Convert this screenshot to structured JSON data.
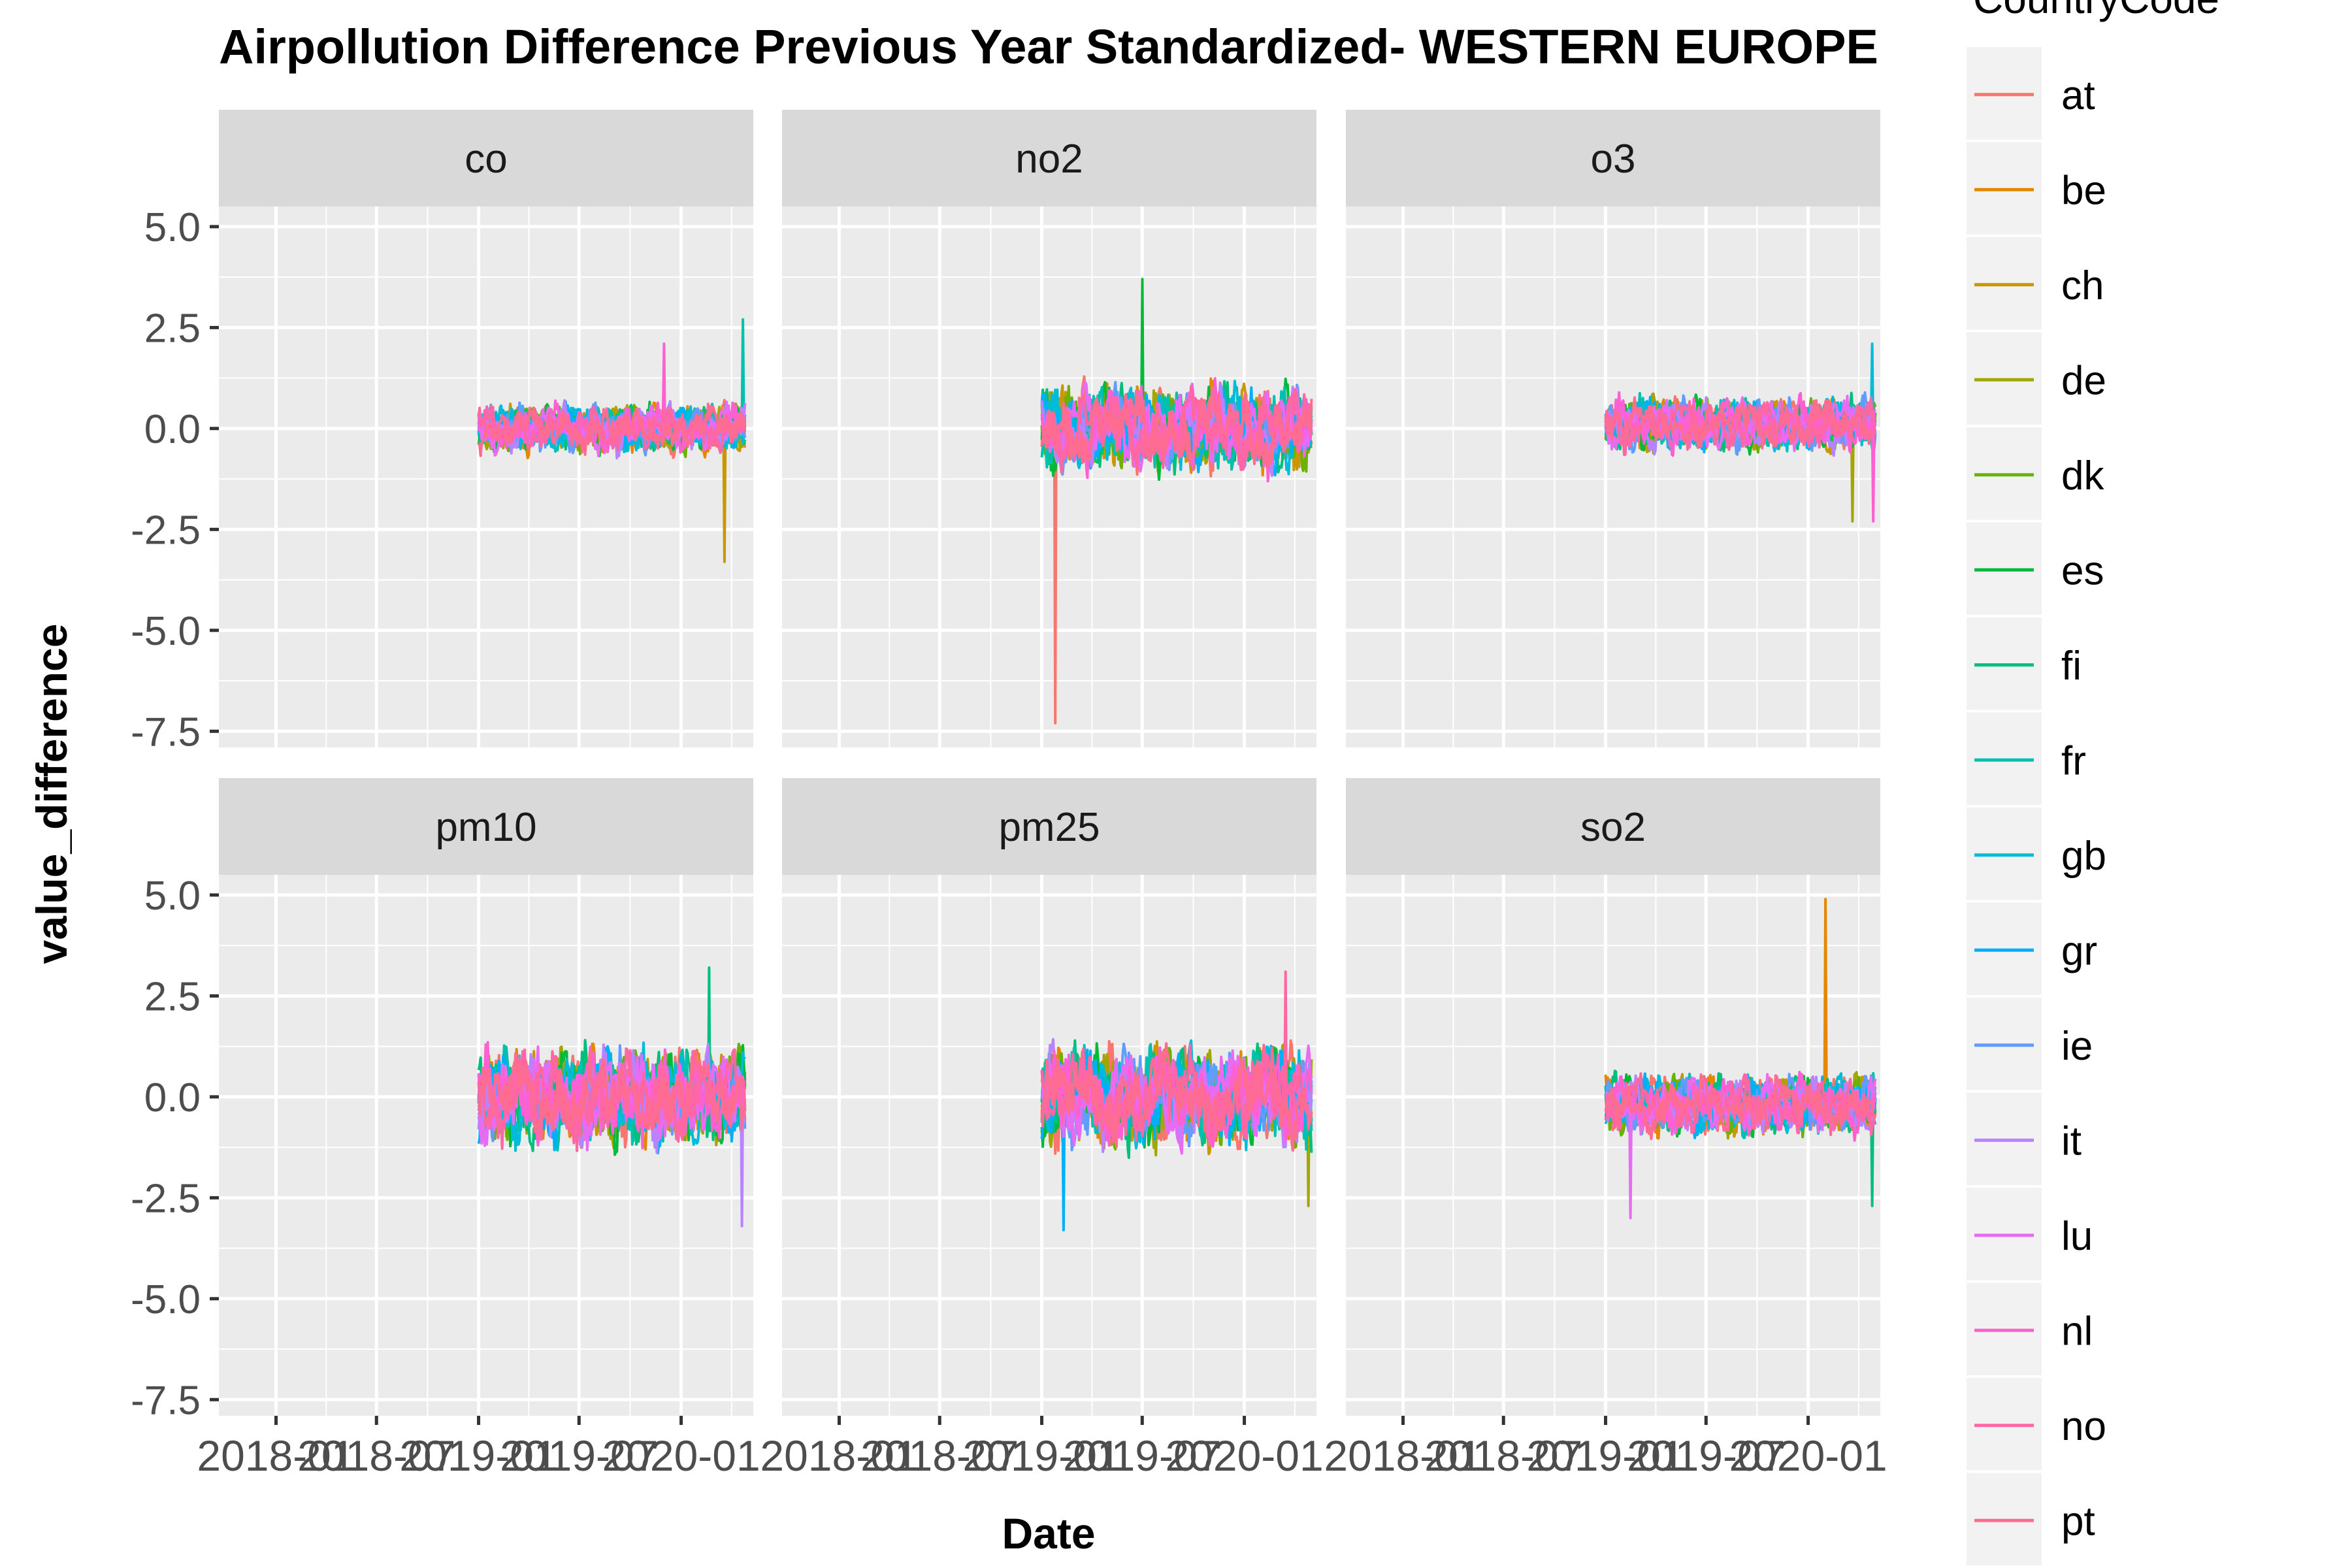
{
  "chart_data": {
    "type": "line",
    "title": "Airpollution Difference Previous Year Standardized- WESTERN EUROPE",
    "xlabel": "Date",
    "ylabel": "value_difference",
    "legend_title": "CountryCode",
    "legend_position": "right",
    "grid": true,
    "ylim": [
      -7.9,
      5.5
    ],
    "yticks": [
      -7.5,
      -5.0,
      -2.5,
      0.0,
      2.5,
      5.0
    ],
    "ytick_labels": [
      "-7.5",
      "-5.0",
      "-2.5",
      "0.0",
      "2.5",
      "5.0"
    ],
    "xlim": [
      "2017-09-20",
      "2020-05-10"
    ],
    "xticks": [
      "2018-01-01",
      "2018-07-01",
      "2019-01-01",
      "2019-07-01",
      "2020-01-01"
    ],
    "xtick_labels": [
      "2018-01",
      "2018-07",
      "2019-01",
      "2019-07",
      "2020-01"
    ],
    "series": [
      {
        "name": "at",
        "color": "#F8766D"
      },
      {
        "name": "be",
        "color": "#E58700"
      },
      {
        "name": "ch",
        "color": "#C99800"
      },
      {
        "name": "de",
        "color": "#A3A500"
      },
      {
        "name": "dk",
        "color": "#6BB100"
      },
      {
        "name": "es",
        "color": "#00BA38"
      },
      {
        "name": "fi",
        "color": "#00BF7D"
      },
      {
        "name": "fr",
        "color": "#00C0AF"
      },
      {
        "name": "gb",
        "color": "#00BCD8"
      },
      {
        "name": "gr",
        "color": "#00B0F6"
      },
      {
        "name": "ie",
        "color": "#619CFF"
      },
      {
        "name": "it",
        "color": "#B983FF"
      },
      {
        "name": "lu",
        "color": "#E76BF3"
      },
      {
        "name": "nl",
        "color": "#FD61D1"
      },
      {
        "name": "no",
        "color": "#FF67A4"
      },
      {
        "name": "pt",
        "color": "#FF6C91"
      }
    ],
    "panels": [
      {
        "label": "co",
        "start": "2019-01-01",
        "end": "2020-04-25",
        "baseline": 0.0,
        "amplitude": 0.45,
        "y_min": -1.5,
        "y_max": 1.9,
        "extremes": [
          {
            "date": "2019-12-01",
            "value": 2.1
          },
          {
            "date": "2020-03-20",
            "value": -3.3
          },
          {
            "date": "2020-04-22",
            "value": 2.7
          }
        ]
      },
      {
        "label": "no2",
        "start": "2019-01-01",
        "end": "2020-05-01",
        "baseline": 0.0,
        "amplitude": 0.8,
        "y_min": -2.8,
        "y_max": 2.7,
        "extremes": [
          {
            "date": "2019-01-25",
            "value": -7.3
          },
          {
            "date": "2019-07-01",
            "value": 3.7
          }
        ]
      },
      {
        "label": "o3",
        "start": "2019-01-01",
        "end": "2020-05-01",
        "baseline": 0.1,
        "amplitude": 0.5,
        "y_min": -1.5,
        "y_max": 1.5,
        "extremes": [
          {
            "date": "2020-03-20",
            "value": -2.3
          },
          {
            "date": "2020-04-25",
            "value": 2.1
          },
          {
            "date": "2020-04-28",
            "value": -2.3
          }
        ]
      },
      {
        "label": "pm10",
        "start": "2019-01-01",
        "end": "2020-04-25",
        "baseline": 0.0,
        "amplitude": 0.9,
        "y_min": -2.8,
        "y_max": 2.7,
        "extremes": [
          {
            "date": "2020-02-20",
            "value": 3.2
          },
          {
            "date": "2020-04-20",
            "value": -3.2
          }
        ]
      },
      {
        "label": "pm25",
        "start": "2019-01-01",
        "end": "2020-05-01",
        "baseline": 0.0,
        "amplitude": 0.95,
        "y_min": -3.3,
        "y_max": 2.9,
        "extremes": [
          {
            "date": "2019-02-10",
            "value": -3.3
          },
          {
            "date": "2020-03-15",
            "value": 3.1
          },
          {
            "date": "2020-04-25",
            "value": -2.7
          }
        ]
      },
      {
        "label": "so2",
        "start": "2019-01-01",
        "end": "2020-05-01",
        "baseline": -0.2,
        "amplitude": 0.55,
        "y_min": -3.0,
        "y_max": 1.9,
        "extremes": [
          {
            "date": "2019-02-15",
            "value": -3.0
          },
          {
            "date": "2020-02-01",
            "value": 4.9
          },
          {
            "date": "2020-04-25",
            "value": -2.7
          }
        ]
      }
    ]
  }
}
